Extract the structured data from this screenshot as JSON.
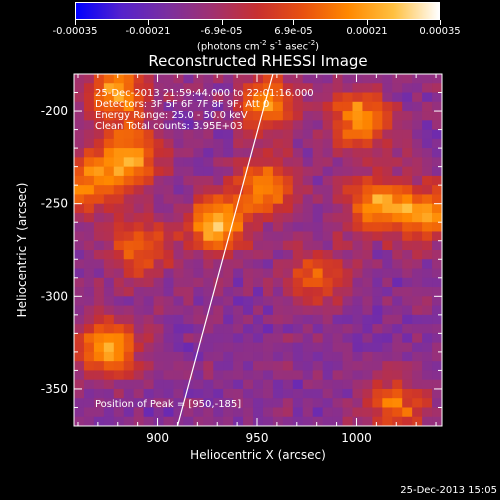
{
  "colorbar": {
    "tick_labels": [
      "-0.00035",
      "-0.00021",
      "-6.9e-05",
      "6.9e-05",
      "0.00021",
      "0.00035"
    ],
    "tick_values": [
      -0.00035,
      -0.00021,
      -6.9e-05,
      6.9e-05,
      0.00021,
      0.00035
    ],
    "range": [
      -0.00035,
      0.00035
    ],
    "units_label": "(photons cm",
    "units_exp1": "-2",
    "units_mid1": " s",
    "units_exp2": "-1",
    "units_mid2": " asec",
    "units_exp3": "-2",
    "units_end": ")",
    "colors": [
      "#0000ff",
      "#5522cc",
      "#7a2fa0",
      "#a03070",
      "#c83030",
      "#e85010",
      "#ff8800",
      "#ffc040",
      "#ffffff"
    ]
  },
  "chart_data": {
    "type": "heatmap",
    "title": "Reconstructed RHESSI Image",
    "xlabel": "Heliocentric X (arcsec)",
    "ylabel": "Heliocentric Y (arcsec)",
    "xlim": [
      858,
      1043
    ],
    "ylim": [
      -370,
      -180
    ],
    "x_ticks": [
      900,
      950,
      1000
    ],
    "y_ticks": [
      -350,
      -300,
      -250,
      -200
    ],
    "x_tick_labels": [
      "900",
      "950",
      "1000"
    ],
    "y_tick_labels": [
      "-350",
      "-300",
      "-250",
      "-200"
    ],
    "limb_line": {
      "from": [
        910,
        -370
      ],
      "to": [
        958,
        -180
      ]
    },
    "bright_regions": [
      {
        "x": 880,
        "y": -190,
        "level": 0.9
      },
      {
        "x": 885,
        "y": -225,
        "level": 0.95
      },
      {
        "x": 930,
        "y": -262,
        "level": 1.0
      },
      {
        "x": 955,
        "y": -240,
        "level": 0.85
      },
      {
        "x": 1002,
        "y": -205,
        "level": 0.9
      },
      {
        "x": 1010,
        "y": -250,
        "level": 0.9
      },
      {
        "x": 1035,
        "y": -255,
        "level": 0.8
      },
      {
        "x": 875,
        "y": -328,
        "level": 0.95
      },
      {
        "x": 890,
        "y": -275,
        "level": 0.7
      },
      {
        "x": 980,
        "y": -290,
        "level": 0.6
      },
      {
        "x": 1020,
        "y": -360,
        "level": 0.7
      },
      {
        "x": 865,
        "y": -240,
        "level": 0.75
      },
      {
        "x": 955,
        "y": -195,
        "level": 0.8
      }
    ],
    "annotations": {
      "time_range": "25-Dec-2013 21:59:44.000 to 22:01:16.000",
      "detectors": "Detectors: 3F 5F 6F 7F 8F 9F, Att 0",
      "energy": "Energy Range: 25.0 - 50.0 keV",
      "method": "Clean    Total counts: 3.95E+03",
      "peak": "Position of Peak = [950,-185]"
    }
  },
  "timestamp": "25-Dec-2013 15:05"
}
